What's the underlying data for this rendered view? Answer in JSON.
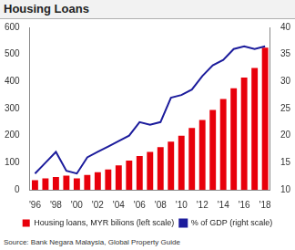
{
  "chart_data": {
    "type": "bar",
    "title": "Housing Loans",
    "source": "Source: Bank Negara Malaysia, Global Property Guide",
    "categories": [
      "'96",
      null,
      "'98",
      null,
      "'00",
      null,
      "'02",
      null,
      "'04",
      null,
      "'06",
      null,
      "'08",
      null,
      "'10",
      null,
      "'12",
      null,
      "'14",
      null,
      "'16",
      null,
      "'18"
    ],
    "series": [
      {
        "name": "Housing loans, MYR bilions (left scale)",
        "type": "bar",
        "color": "#e8000b",
        "values": [
          35,
          42,
          47,
          52,
          42,
          55,
          65,
          75,
          90,
          108,
          125,
          140,
          158,
          178,
          200,
          228,
          258,
          295,
          335,
          375,
          415,
          450,
          525
        ]
      },
      {
        "name": "% of GDP (right scale)",
        "type": "line",
        "axis": "y2",
        "color": "#1c1c9c",
        "values": [
          13,
          15,
          17,
          13.5,
          13,
          16,
          17,
          18,
          19,
          20,
          22.5,
          22,
          22.5,
          27,
          27.5,
          28.5,
          31,
          33,
          34,
          36,
          36.5,
          36,
          36.5
        ]
      }
    ],
    "ylim": [
      0,
      600
    ],
    "yticks": [
      0,
      100,
      200,
      300,
      400,
      500,
      600
    ],
    "y2lim": [
      10,
      40
    ],
    "y2ticks": [
      10,
      15,
      20,
      25,
      30,
      35,
      40
    ],
    "grid": false,
    "legend": "bottom"
  }
}
